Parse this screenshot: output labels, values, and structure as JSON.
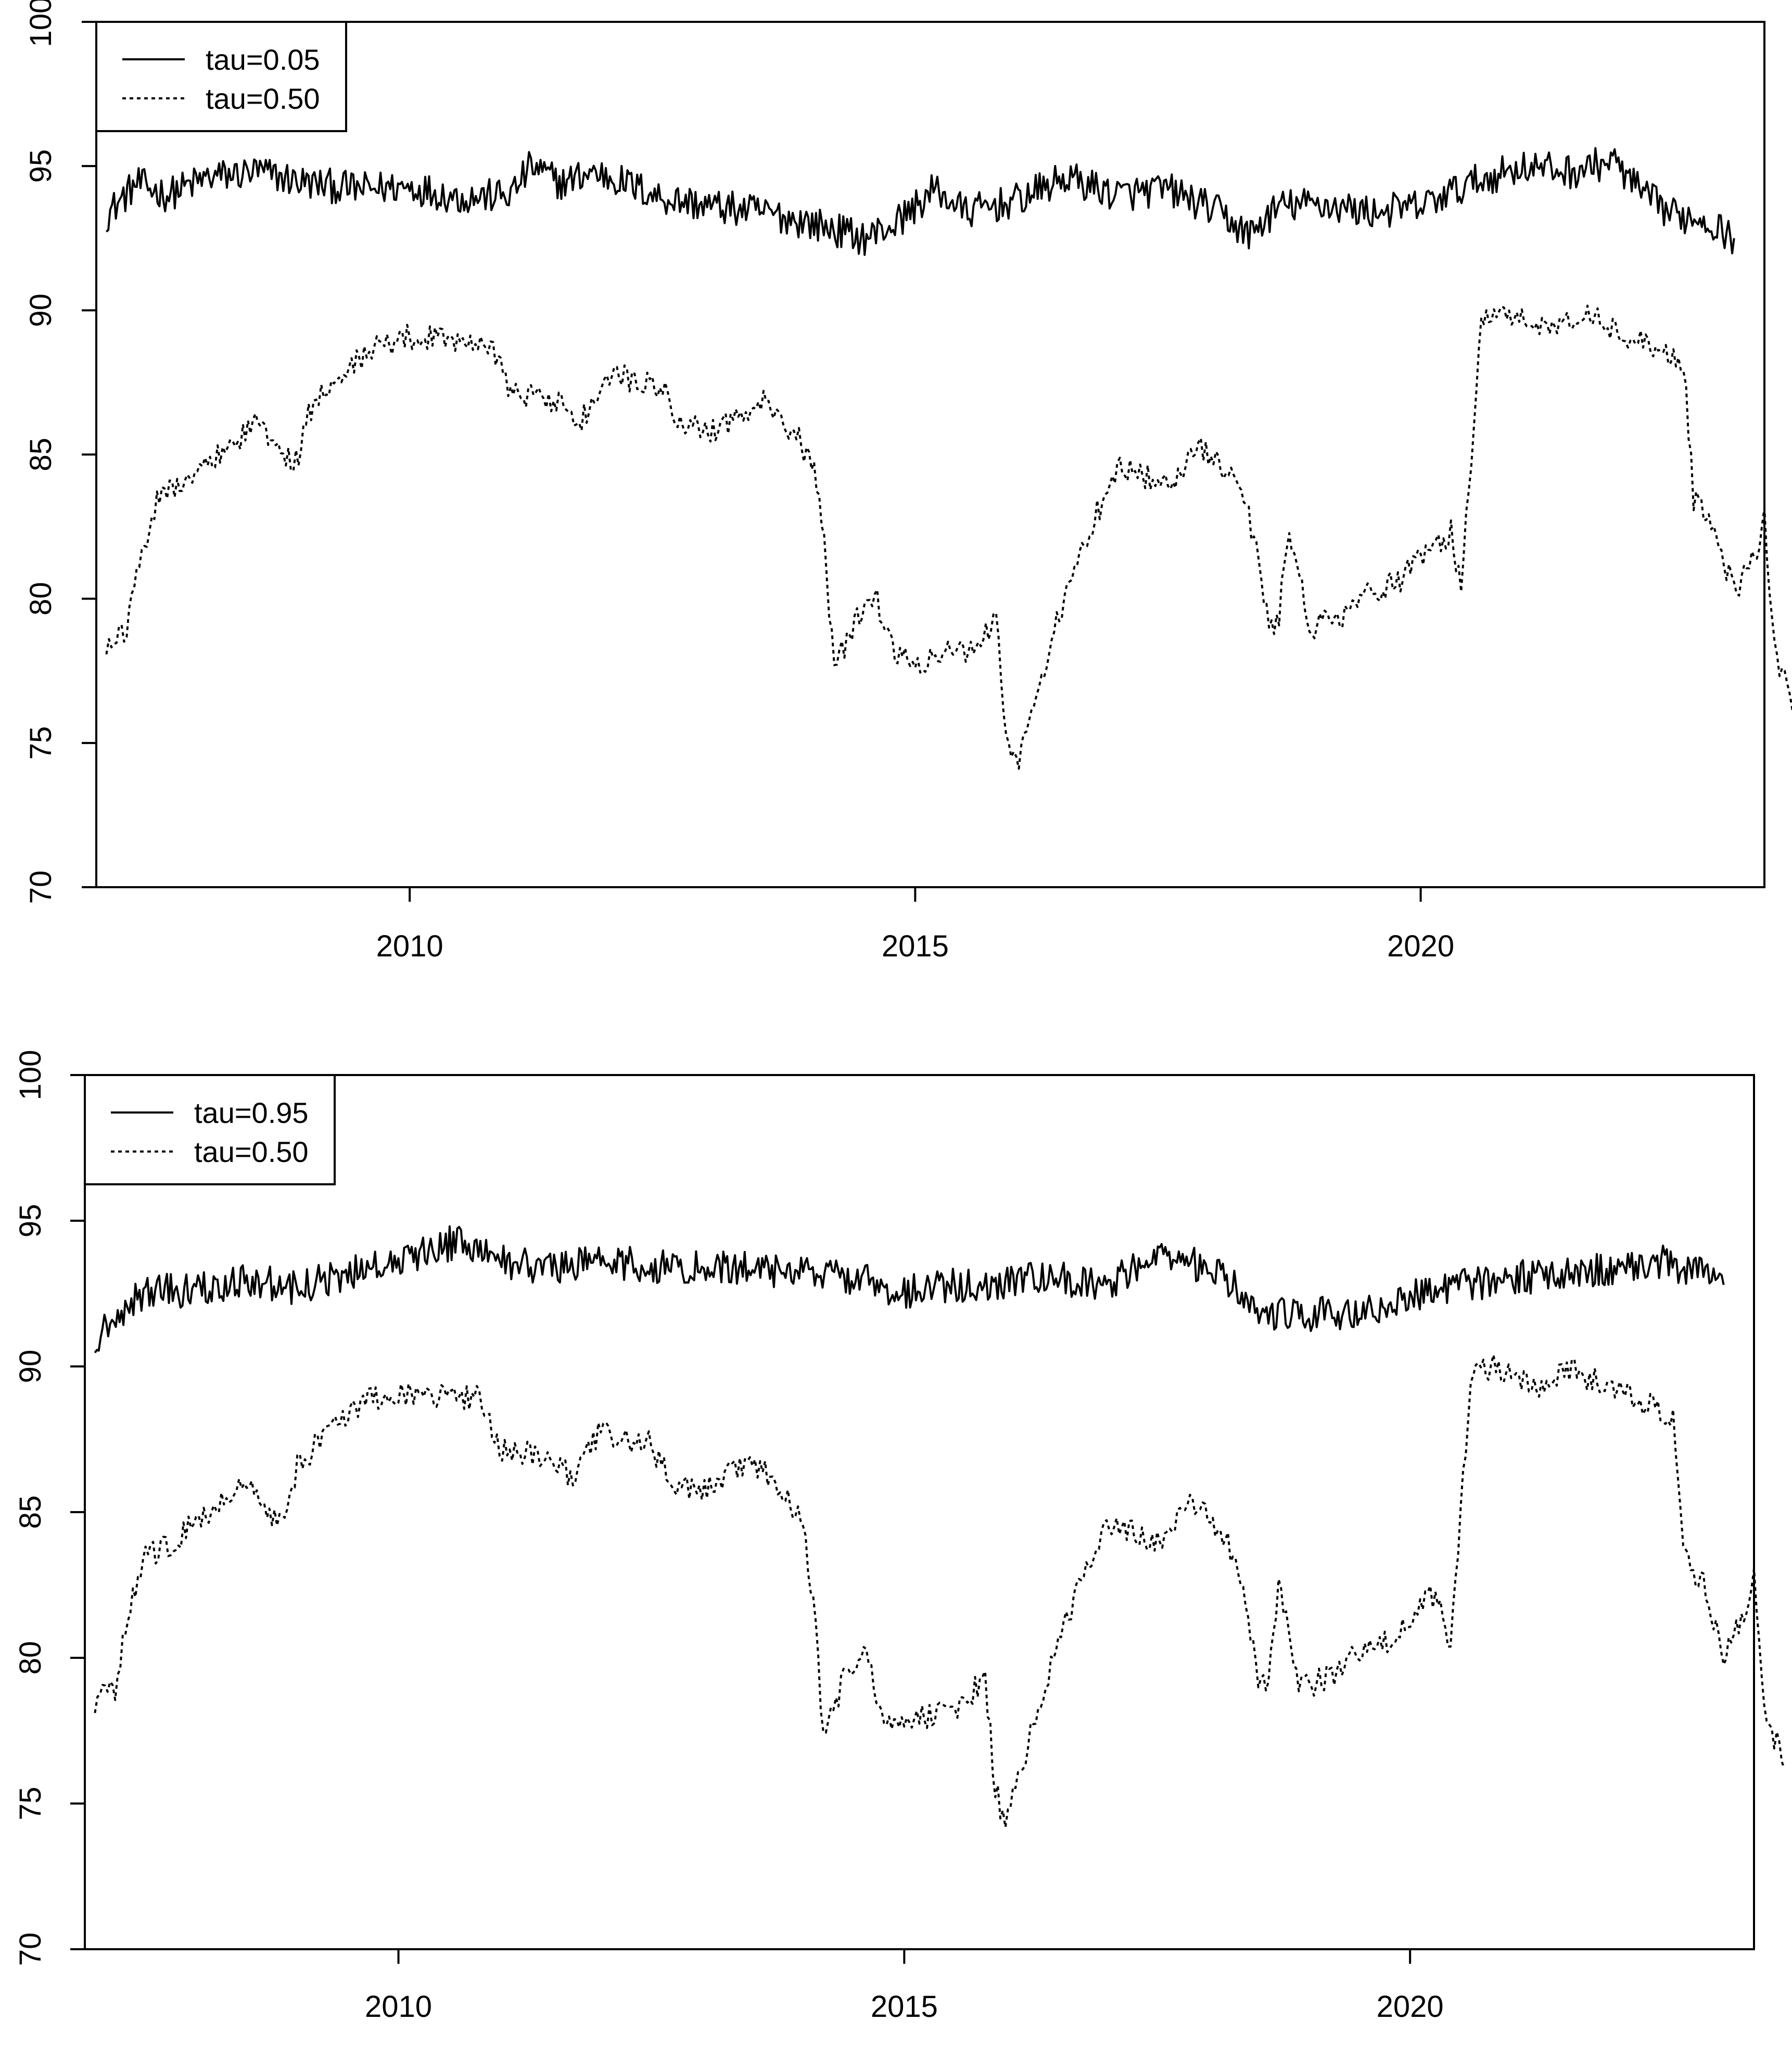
{
  "chart_data": [
    {
      "type": "line",
      "title": "",
      "xlabel": "",
      "ylabel": "",
      "xlim": [
        2006.9,
        2023.4
      ],
      "ylim": [
        70,
        100
      ],
      "x_ticks": [
        2010,
        2015,
        2020
      ],
      "x_tick_labels": [
        "2010",
        "2015",
        "2020"
      ],
      "y_ticks": [
        70,
        75,
        80,
        85,
        90,
        95,
        100
      ],
      "y_tick_labels": [
        "70",
        "75",
        "80",
        "85",
        "90",
        "95",
        "100"
      ],
      "grid": false,
      "legend_position": "top-left",
      "legend": [
        {
          "label": "tau=0.05",
          "style": "solid"
        },
        {
          "label": "tau=0.50",
          "style": "dotted"
        }
      ],
      "series": [
        {
          "name": "tau=0.05",
          "style": "solid",
          "color": "#000000",
          "points": [
            [
              2007.0,
              93.3
            ],
            [
              2007.3,
              94.4
            ],
            [
              2007.6,
              94.0
            ],
            [
              2008.0,
              94.6
            ],
            [
              2008.5,
              94.8
            ],
            [
              2009.0,
              94.4
            ],
            [
              2009.5,
              94.2
            ],
            [
              2010.0,
              94.3
            ],
            [
              2010.5,
              93.9
            ],
            [
              2011.0,
              94.0
            ],
            [
              2011.2,
              95.0
            ],
            [
              2011.5,
              94.4
            ],
            [
              2011.8,
              94.8
            ],
            [
              2012.0,
              94.6
            ],
            [
              2012.5,
              93.9
            ],
            [
              2013.0,
              93.6
            ],
            [
              2013.5,
              93.4
            ],
            [
              2014.0,
              93.0
            ],
            [
              2014.5,
              92.5
            ],
            [
              2014.8,
              93.0
            ],
            [
              2015.2,
              94.2
            ],
            [
              2015.5,
              93.4
            ],
            [
              2016.0,
              93.8
            ],
            [
              2016.5,
              94.6
            ],
            [
              2017.0,
              94.0
            ],
            [
              2017.5,
              94.2
            ],
            [
              2018.0,
              93.4
            ],
            [
              2018.3,
              92.6
            ],
            [
              2018.6,
              93.6
            ],
            [
              2019.0,
              93.7
            ],
            [
              2019.5,
              93.4
            ],
            [
              2020.0,
              93.6
            ],
            [
              2020.5,
              94.4
            ],
            [
              2021.0,
              95.0
            ],
            [
              2021.5,
              94.8
            ],
            [
              2021.9,
              95.2
            ],
            [
              2022.2,
              94.0
            ],
            [
              2022.5,
              93.3
            ],
            [
              2022.8,
              93.2
            ],
            [
              2023.1,
              92.5
            ]
          ]
        },
        {
          "name": "tau=0.50",
          "style": "dotted",
          "color": "#000000",
          "points": [
            [
              2007.0,
              78.5
            ],
            [
              2007.2,
              78.9
            ],
            [
              2007.3,
              81.0
            ],
            [
              2007.5,
              83.5
            ],
            [
              2007.8,
              84.0
            ],
            [
              2008.0,
              84.7
            ],
            [
              2008.3,
              85.5
            ],
            [
              2008.5,
              86.2
            ],
            [
              2008.7,
              85.0
            ],
            [
              2008.9,
              84.8
            ],
            [
              2009.0,
              86.5
            ],
            [
              2009.3,
              87.8
            ],
            [
              2009.7,
              88.8
            ],
            [
              2010.0,
              89.1
            ],
            [
              2010.5,
              89.0
            ],
            [
              2010.8,
              88.9
            ],
            [
              2011.0,
              87.2
            ],
            [
              2011.5,
              86.8
            ],
            [
              2011.7,
              86.2
            ],
            [
              2012.0,
              87.8
            ],
            [
              2012.5,
              87.3
            ],
            [
              2012.7,
              86.0
            ],
            [
              2013.0,
              85.8
            ],
            [
              2013.5,
              86.8
            ],
            [
              2013.8,
              85.8
            ],
            [
              2014.0,
              84.5
            ],
            [
              2014.1,
              82.0
            ],
            [
              2014.2,
              77.5
            ],
            [
              2014.4,
              79.2
            ],
            [
              2014.6,
              80.2
            ],
            [
              2014.8,
              78.0
            ],
            [
              2015.0,
              77.8
            ],
            [
              2015.5,
              78.2
            ],
            [
              2015.8,
              79.3
            ],
            [
              2015.9,
              75.5
            ],
            [
              2016.0,
              74.2
            ],
            [
              2016.1,
              75.5
            ],
            [
              2016.3,
              78.0
            ],
            [
              2016.5,
              80.3
            ],
            [
              2016.8,
              83.0
            ],
            [
              2017.0,
              84.6
            ],
            [
              2017.3,
              84.2
            ],
            [
              2017.5,
              83.9
            ],
            [
              2017.8,
              85.2
            ],
            [
              2018.0,
              84.8
            ],
            [
              2018.2,
              84.0
            ],
            [
              2018.4,
              81.5
            ],
            [
              2018.5,
              78.8
            ],
            [
              2018.6,
              79.5
            ],
            [
              2018.7,
              82.5
            ],
            [
              2018.9,
              79.0
            ],
            [
              2019.2,
              79.3
            ],
            [
              2019.5,
              80.2
            ],
            [
              2019.8,
              80.6
            ],
            [
              2020.0,
              81.5
            ],
            [
              2020.3,
              82.3
            ],
            [
              2020.4,
              80.2
            ],
            [
              2020.5,
              85.0
            ],
            [
              2020.6,
              89.5
            ],
            [
              2020.8,
              90.0
            ],
            [
              2021.0,
              89.6
            ],
            [
              2021.3,
              89.3
            ],
            [
              2021.6,
              89.9
            ],
            [
              2022.0,
              89.2
            ],
            [
              2022.4,
              88.6
            ],
            [
              2022.6,
              88.2
            ],
            [
              2022.7,
              83.5
            ],
            [
              2022.9,
              82.5
            ],
            [
              2023.1,
              80.2
            ],
            [
              2023.3,
              81.5
            ],
            [
              2023.4,
              82.8
            ],
            [
              2023.5,
              78.2
            ],
            [
              2023.6,
              77.3
            ],
            [
              2023.7,
              76.2
            ]
          ]
        }
      ]
    },
    {
      "type": "line",
      "title": "",
      "xlabel": "",
      "ylabel": "",
      "xlim": [
        2006.9,
        2023.4
      ],
      "ylim": [
        70,
        100
      ],
      "x_ticks": [
        2010,
        2015,
        2020
      ],
      "x_tick_labels": [
        "2010",
        "2015",
        "2020"
      ],
      "y_ticks": [
        70,
        75,
        80,
        85,
        90,
        95,
        100
      ],
      "y_tick_labels": [
        "70",
        "75",
        "80",
        "85",
        "90",
        "95",
        "100"
      ],
      "grid": false,
      "legend_position": "top-left",
      "legend": [
        {
          "label": "tau=0.95",
          "style": "solid"
        },
        {
          "label": "tau=0.50",
          "style": "dotted"
        }
      ],
      "series": [
        {
          "name": "tau=0.95",
          "style": "solid",
          "color": "#000000",
          "points": [
            [
              2007.0,
              91.0
            ],
            [
              2007.3,
              92.0
            ],
            [
              2007.5,
              92.6
            ],
            [
              2008.0,
              92.6
            ],
            [
              2008.5,
              93.0
            ],
            [
              2009.0,
              92.7
            ],
            [
              2009.5,
              93.2
            ],
            [
              2010.0,
              93.6
            ],
            [
              2010.3,
              94.0
            ],
            [
              2010.6,
              94.3
            ],
            [
              2011.0,
              93.6
            ],
            [
              2011.5,
              93.4
            ],
            [
              2012.0,
              93.7
            ],
            [
              2012.5,
              93.4
            ],
            [
              2013.0,
              93.4
            ],
            [
              2013.5,
              93.4
            ],
            [
              2014.0,
              93.2
            ],
            [
              2014.5,
              93.0
            ],
            [
              2015.0,
              92.6
            ],
            [
              2015.5,
              92.8
            ],
            [
              2016.0,
              92.9
            ],
            [
              2016.5,
              93.0
            ],
            [
              2017.0,
              92.8
            ],
            [
              2017.3,
              93.4
            ],
            [
              2017.6,
              93.8
            ],
            [
              2018.0,
              93.4
            ],
            [
              2018.3,
              92.6
            ],
            [
              2018.6,
              91.8
            ],
            [
              2019.0,
              91.8
            ],
            [
              2019.5,
              91.9
            ],
            [
              2020.0,
              92.4
            ],
            [
              2020.5,
              92.8
            ],
            [
              2021.0,
              93.0
            ],
            [
              2021.5,
              93.2
            ],
            [
              2022.0,
              93.3
            ],
            [
              2022.5,
              93.6
            ],
            [
              2022.9,
              93.2
            ],
            [
              2023.1,
              92.8
            ]
          ]
        },
        {
          "name": "tau=0.50",
          "style": "dotted",
          "color": "#000000",
          "points": [
            [
              2007.0,
              78.5
            ],
            [
              2007.2,
              78.9
            ],
            [
              2007.3,
              81.0
            ],
            [
              2007.5,
              83.5
            ],
            [
              2007.8,
              84.0
            ],
            [
              2008.0,
              84.7
            ],
            [
              2008.3,
              85.5
            ],
            [
              2008.5,
              86.2
            ],
            [
              2008.7,
              85.0
            ],
            [
              2008.9,
              84.8
            ],
            [
              2009.0,
              86.5
            ],
            [
              2009.3,
              87.8
            ],
            [
              2009.7,
              88.8
            ],
            [
              2010.0,
              89.1
            ],
            [
              2010.5,
              89.0
            ],
            [
              2010.8,
              88.9
            ],
            [
              2011.0,
              87.2
            ],
            [
              2011.5,
              86.8
            ],
            [
              2011.7,
              86.2
            ],
            [
              2012.0,
              87.8
            ],
            [
              2012.5,
              87.3
            ],
            [
              2012.7,
              86.0
            ],
            [
              2013.0,
              85.8
            ],
            [
              2013.5,
              86.8
            ],
            [
              2013.8,
              85.8
            ],
            [
              2014.0,
              84.5
            ],
            [
              2014.1,
              82.0
            ],
            [
              2014.2,
              77.5
            ],
            [
              2014.4,
              79.2
            ],
            [
              2014.6,
              80.2
            ],
            [
              2014.8,
              78.0
            ],
            [
              2015.0,
              77.8
            ],
            [
              2015.5,
              78.2
            ],
            [
              2015.8,
              79.3
            ],
            [
              2015.9,
              75.5
            ],
            [
              2016.0,
              74.2
            ],
            [
              2016.1,
              75.5
            ],
            [
              2016.3,
              78.0
            ],
            [
              2016.5,
              80.3
            ],
            [
              2016.8,
              83.0
            ],
            [
              2017.0,
              84.6
            ],
            [
              2017.3,
              84.2
            ],
            [
              2017.5,
              83.9
            ],
            [
              2017.8,
              85.2
            ],
            [
              2018.0,
              84.8
            ],
            [
              2018.2,
              84.0
            ],
            [
              2018.4,
              81.5
            ],
            [
              2018.5,
              78.8
            ],
            [
              2018.6,
              79.5
            ],
            [
              2018.7,
              82.5
            ],
            [
              2018.9,
              79.0
            ],
            [
              2019.2,
              79.3
            ],
            [
              2019.5,
              80.2
            ],
            [
              2019.8,
              80.6
            ],
            [
              2020.0,
              81.5
            ],
            [
              2020.3,
              82.3
            ],
            [
              2020.4,
              80.2
            ],
            [
              2020.5,
              85.0
            ],
            [
              2020.6,
              89.5
            ],
            [
              2020.8,
              90.0
            ],
            [
              2021.0,
              89.6
            ],
            [
              2021.3,
              89.3
            ],
            [
              2021.6,
              89.9
            ],
            [
              2022.0,
              89.2
            ],
            [
              2022.4,
              88.6
            ],
            [
              2022.6,
              88.2
            ],
            [
              2022.7,
              83.5
            ],
            [
              2022.9,
              82.5
            ],
            [
              2023.1,
              80.2
            ],
            [
              2023.3,
              81.5
            ],
            [
              2023.4,
              82.8
            ],
            [
              2023.5,
              78.2
            ],
            [
              2023.6,
              77.3
            ],
            [
              2023.7,
              76.2
            ]
          ]
        }
      ]
    }
  ]
}
